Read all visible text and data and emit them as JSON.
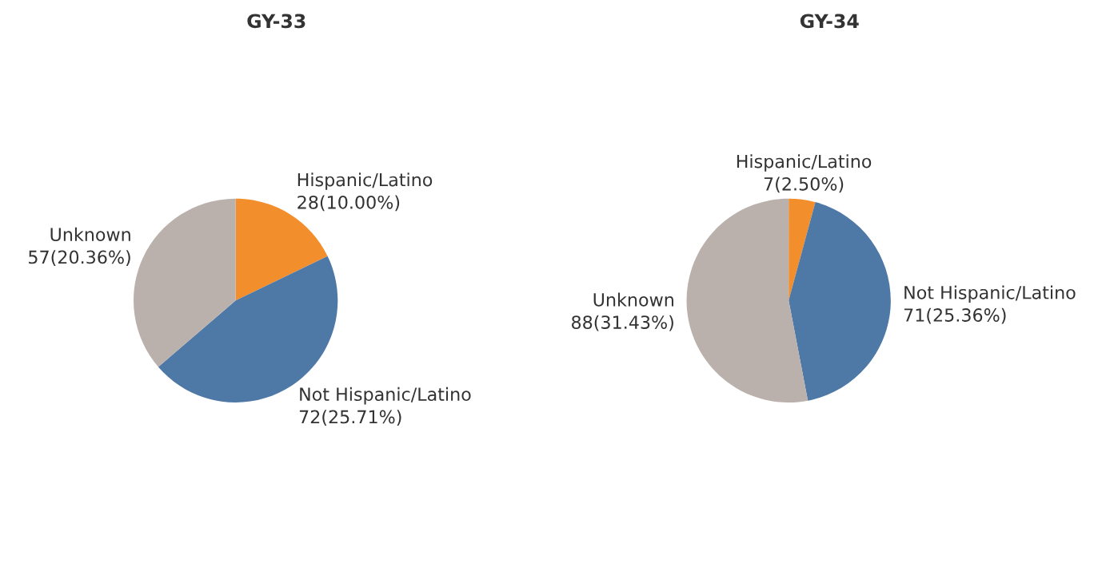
{
  "chart_data": [
    {
      "type": "pie",
      "title": "GY-33",
      "categories": [
        "Hispanic/Latino",
        "Not Hispanic/Latino",
        "Unknown"
      ],
      "values": [
        28,
        72,
        57
      ],
      "colors": [
        "#f28e2b",
        "#4e79a7",
        "#bab0ac"
      ],
      "value_labels": [
        "28(10.00%)",
        "72(25.71%)",
        "57(20.36%)"
      ]
    },
    {
      "type": "pie",
      "title": "GY-34",
      "categories": [
        "Hispanic/Latino",
        "Not Hispanic/Latino",
        "Unknown"
      ],
      "values": [
        7,
        71,
        88
      ],
      "colors": [
        "#f28e2b",
        "#4e79a7",
        "#bab0ac"
      ],
      "value_labels": [
        "7(2.50%)",
        "71(25.36%)",
        "88(31.43%)"
      ]
    }
  ]
}
